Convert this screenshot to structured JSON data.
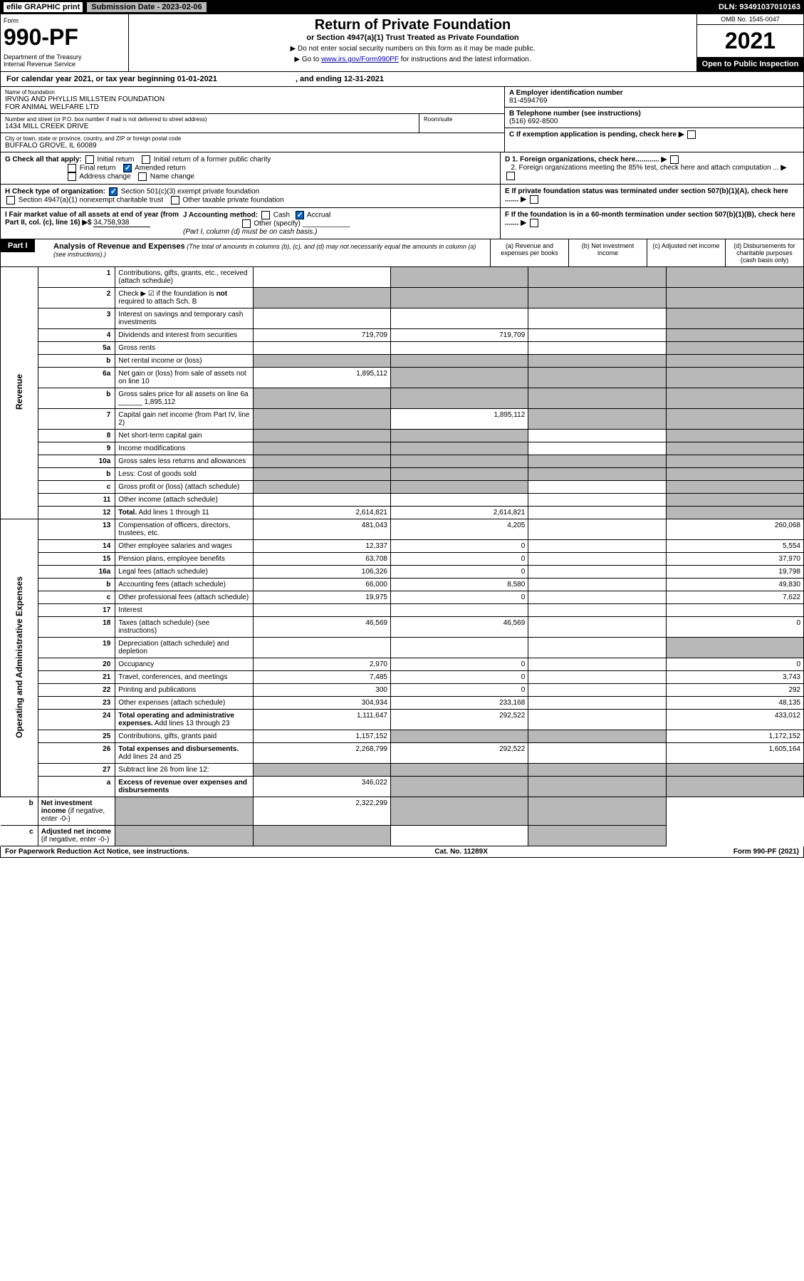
{
  "top_bar": {
    "efile": "efile GRAPHIC print",
    "submission": "Submission Date - 2023-02-06",
    "dln": "DLN: 93491037010163"
  },
  "form_header": {
    "form_label": "Form",
    "form_number": "990-PF",
    "dept": "Department of the Treasury\nInternal Revenue Service",
    "title": "Return of Private Foundation",
    "subtitle": "or Section 4947(a)(1) Trust Treated as Private Foundation",
    "note1": "▶ Do not enter social security numbers on this form as it may be made public.",
    "note2_prefix": "▶ Go to ",
    "note2_link": "www.irs.gov/Form990PF",
    "note2_suffix": " for instructions and the latest information.",
    "omb": "OMB No. 1545-0047",
    "year": "2021",
    "inspection": "Open to Public Inspection"
  },
  "calendar": "For calendar year 2021, or tax year beginning 01-01-2021                                    , and ending 12-31-2021",
  "foundation": {
    "name_label": "Name of foundation",
    "name": "IRVING AND PHYLLIS MILLSTEIN FOUNDATION\nFOR ANIMAL WELFARE LTD",
    "address_label": "Number and street (or P.O. box number if mail is not delivered to street address)",
    "address": "1434 MILL CREEK DRIVE",
    "room_label": "Room/suite",
    "city_label": "City or town, state or province, country, and ZIP or foreign postal code",
    "city": "BUFFALO GROVE, IL  60089",
    "ein_label": "A Employer identification number",
    "ein": "81-4594769",
    "phone_label": "B Telephone number (see instructions)",
    "phone": "(516) 692-8500",
    "c_label": "C If exemption application is pending, check here",
    "d1_label": "D 1. Foreign organizations, check here............",
    "d2_label": "2. Foreign organizations meeting the 85% test, check here and attach computation ...",
    "e_label": "E If private foundation status was terminated under section 507(b)(1)(A), check here .......",
    "f_label": "F If the foundation is in a 60-month termination under section 507(b)(1)(B), check here .......",
    "g_label": "G Check all that apply:",
    "g_opts": [
      "Initial return",
      "Initial return of a former public charity",
      "Final return",
      "Amended return",
      "Address change",
      "Name change"
    ],
    "h_label": "H Check type of organization:",
    "h_opt1": "Section 501(c)(3) exempt private foundation",
    "h_opt2": "Section 4947(a)(1) nonexempt charitable trust",
    "h_opt3": "Other taxable private foundation",
    "i_label": "I Fair market value of all assets at end of year (from Part II, col. (c), line 16) ▶$",
    "i_value": "34,758,938",
    "j_label": "J Accounting method:",
    "j_cash": "Cash",
    "j_accrual": "Accrual",
    "j_other": "Other (specify)",
    "j_note": "(Part I, column (d) must be on cash basis.)"
  },
  "part1": {
    "label": "Part I",
    "title": "Analysis of Revenue and Expenses",
    "subtitle": "(The total of amounts in columns (b), (c), and (d) may not necessarily equal the amounts in column (a) (see instructions).)",
    "col_a": "(a) Revenue and expenses per books",
    "col_b": "(b) Net investment income",
    "col_c": "(c) Adjusted net income",
    "col_d": "(d) Disbursements for charitable purposes (cash basis only)"
  },
  "sections": {
    "revenue": "Revenue",
    "expenses": "Operating and Administrative Expenses"
  },
  "rows": [
    {
      "n": "1",
      "desc": "Contributions, gifts, grants, etc., received (attach schedule)",
      "a": "",
      "b": "shaded",
      "c": "shaded",
      "d": "shaded"
    },
    {
      "n": "2",
      "desc": "Check ▶ ☑ if the foundation is <b>not</b> required to attach Sch. B",
      "a": "shaded",
      "b": "shaded",
      "c": "shaded",
      "d": "shaded"
    },
    {
      "n": "3",
      "desc": "Interest on savings and temporary cash investments",
      "a": "",
      "b": "",
      "c": "",
      "d": "shaded"
    },
    {
      "n": "4",
      "desc": "Dividends and interest from securities",
      "a": "719,709",
      "b": "719,709",
      "c": "",
      "d": "shaded"
    },
    {
      "n": "5a",
      "desc": "Gross rents",
      "a": "",
      "b": "",
      "c": "",
      "d": "shaded"
    },
    {
      "n": "b",
      "desc": "Net rental income or (loss)",
      "a": "shaded",
      "b": "shaded",
      "c": "shaded",
      "d": "shaded"
    },
    {
      "n": "6a",
      "desc": "Net gain or (loss) from sale of assets not on line 10",
      "a": "1,895,112",
      "b": "shaded",
      "c": "shaded",
      "d": "shaded"
    },
    {
      "n": "b",
      "desc": "Gross sales price for all assets on line 6a ______ 1,895,112",
      "a": "shaded",
      "b": "shaded",
      "c": "shaded",
      "d": "shaded"
    },
    {
      "n": "7",
      "desc": "Capital gain net income (from Part IV, line 2)",
      "a": "shaded",
      "b": "1,895,112",
      "c": "shaded",
      "d": "shaded"
    },
    {
      "n": "8",
      "desc": "Net short-term capital gain",
      "a": "shaded",
      "b": "shaded",
      "c": "",
      "d": "shaded"
    },
    {
      "n": "9",
      "desc": "Income modifications",
      "a": "shaded",
      "b": "shaded",
      "c": "",
      "d": "shaded"
    },
    {
      "n": "10a",
      "desc": "Gross sales less returns and allowances",
      "a": "shaded",
      "b": "shaded",
      "c": "shaded",
      "d": "shaded"
    },
    {
      "n": "b",
      "desc": "Less: Cost of goods sold",
      "a": "shaded",
      "b": "shaded",
      "c": "shaded",
      "d": "shaded"
    },
    {
      "n": "c",
      "desc": "Gross profit or (loss) (attach schedule)",
      "a": "shaded",
      "b": "shaded",
      "c": "",
      "d": "shaded"
    },
    {
      "n": "11",
      "desc": "Other income (attach schedule)",
      "a": "",
      "b": "",
      "c": "",
      "d": "shaded"
    },
    {
      "n": "12",
      "desc": "<b>Total.</b> Add lines 1 through 11",
      "a": "2,614,821",
      "b": "2,614,821",
      "c": "",
      "d": "shaded"
    },
    {
      "n": "13",
      "desc": "Compensation of officers, directors, trustees, etc.",
      "a": "481,043",
      "b": "4,205",
      "c": "",
      "d": "260,068"
    },
    {
      "n": "14",
      "desc": "Other employee salaries and wages",
      "a": "12,337",
      "b": "0",
      "c": "",
      "d": "5,554"
    },
    {
      "n": "15",
      "desc": "Pension plans, employee benefits",
      "a": "63,708",
      "b": "0",
      "c": "",
      "d": "37,970"
    },
    {
      "n": "16a",
      "desc": "Legal fees (attach schedule)",
      "a": "106,326",
      "b": "0",
      "c": "",
      "d": "19,798"
    },
    {
      "n": "b",
      "desc": "Accounting fees (attach schedule)",
      "a": "66,000",
      "b": "8,580",
      "c": "",
      "d": "49,830"
    },
    {
      "n": "c",
      "desc": "Other professional fees (attach schedule)",
      "a": "19,975",
      "b": "0",
      "c": "",
      "d": "7,622"
    },
    {
      "n": "17",
      "desc": "Interest",
      "a": "",
      "b": "",
      "c": "",
      "d": ""
    },
    {
      "n": "18",
      "desc": "Taxes (attach schedule) (see instructions)",
      "a": "46,569",
      "b": "46,569",
      "c": "",
      "d": "0"
    },
    {
      "n": "19",
      "desc": "Depreciation (attach schedule) and depletion",
      "a": "",
      "b": "",
      "c": "",
      "d": "shaded"
    },
    {
      "n": "20",
      "desc": "Occupancy",
      "a": "2,970",
      "b": "0",
      "c": "",
      "d": "0"
    },
    {
      "n": "21",
      "desc": "Travel, conferences, and meetings",
      "a": "7,485",
      "b": "0",
      "c": "",
      "d": "3,743"
    },
    {
      "n": "22",
      "desc": "Printing and publications",
      "a": "300",
      "b": "0",
      "c": "",
      "d": "292"
    },
    {
      "n": "23",
      "desc": "Other expenses (attach schedule)",
      "a": "304,934",
      "b": "233,168",
      "c": "",
      "d": "48,135"
    },
    {
      "n": "24",
      "desc": "<b>Total operating and administrative expenses.</b> Add lines 13 through 23",
      "a": "1,111,647",
      "b": "292,522",
      "c": "",
      "d": "433,012"
    },
    {
      "n": "25",
      "desc": "Contributions, gifts, grants paid",
      "a": "1,157,152",
      "b": "shaded",
      "c": "shaded",
      "d": "1,172,152"
    },
    {
      "n": "26",
      "desc": "<b>Total expenses and disbursements.</b> Add lines 24 and 25",
      "a": "2,268,799",
      "b": "292,522",
      "c": "",
      "d": "1,605,164"
    },
    {
      "n": "27",
      "desc": "Subtract line 26 from line 12:",
      "a": "shaded",
      "b": "shaded",
      "c": "shaded",
      "d": "shaded"
    },
    {
      "n": "a",
      "desc": "<b>Excess of revenue over expenses and disbursements</b>",
      "a": "346,022",
      "b": "shaded",
      "c": "shaded",
      "d": "shaded"
    },
    {
      "n": "b",
      "desc": "<b>Net investment income</b> (if negative, enter -0-)",
      "a": "shaded",
      "b": "2,322,299",
      "c": "shaded",
      "d": "shaded"
    },
    {
      "n": "c",
      "desc": "<b>Adjusted net income</b> (if negative, enter -0-)",
      "a": "shaded",
      "b": "shaded",
      "c": "",
      "d": "shaded"
    }
  ],
  "footer": {
    "left": "For Paperwork Reduction Act Notice, see instructions.",
    "center": "Cat. No. 11289X",
    "right": "Form 990-PF (2021)"
  }
}
